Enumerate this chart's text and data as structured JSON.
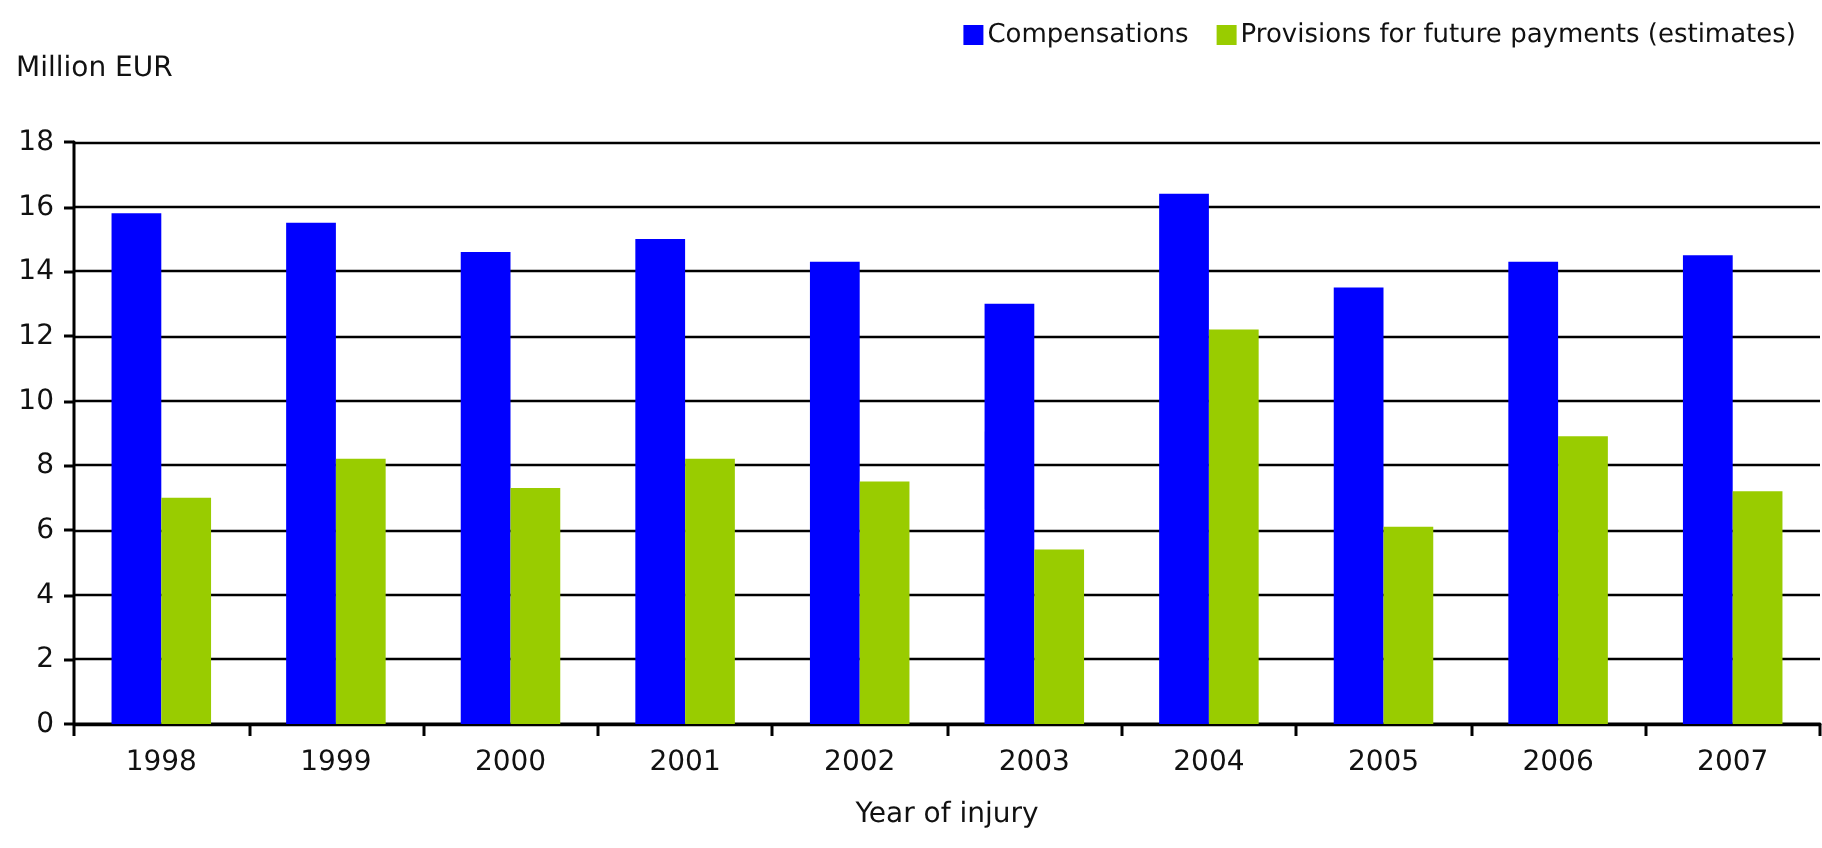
{
  "chart_data": {
    "type": "bar",
    "xlabel": "Year of injury",
    "ylabel": "Million EUR",
    "categories": [
      "1998",
      "1999",
      "2000",
      "2001",
      "2002",
      "2003",
      "2004",
      "2005",
      "2006",
      "2007"
    ],
    "series": [
      {
        "name": "Compensations",
        "color": "#0000ff",
        "values": [
          15.8,
          15.5,
          14.6,
          15.0,
          14.3,
          13.0,
          16.4,
          13.5,
          14.3,
          14.5
        ]
      },
      {
        "name": "Provisions for future payments (estimates)",
        "color": "#99cc00",
        "values": [
          7.0,
          8.2,
          7.3,
          8.2,
          7.5,
          5.4,
          12.2,
          6.1,
          8.9,
          7.2
        ]
      }
    ],
    "ylim": [
      0,
      18
    ],
    "yticks": [
      0,
      2,
      4,
      6,
      8,
      10,
      12,
      14,
      16,
      18
    ],
    "grid": "y",
    "legend": "top right"
  }
}
